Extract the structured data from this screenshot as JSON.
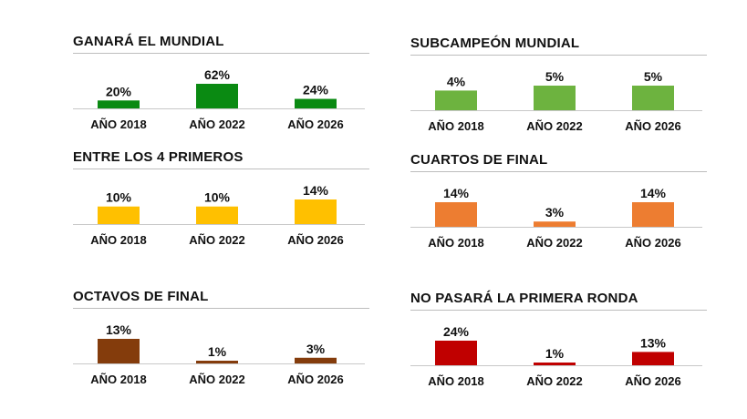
{
  "chart_data": [
    {
      "type": "bar",
      "title": "GANARÁ EL MUNDIAL",
      "categories": [
        "AÑO 2018",
        "AÑO 2022",
        "AÑO 2026"
      ],
      "values": [
        20,
        62,
        24
      ],
      "value_labels": [
        "20%",
        "62%",
        "24%"
      ],
      "color": "#0a8a12",
      "scale_max": 62
    },
    {
      "type": "bar",
      "title": "SUBCAMPEÓN MUNDIAL",
      "categories": [
        "AÑO 2018",
        "AÑO 2022",
        "AÑO 2026"
      ],
      "values": [
        4,
        5,
        5
      ],
      "value_labels": [
        "4%",
        "5%",
        "5%"
      ],
      "color": "#6db33f",
      "scale_max": 5
    },
    {
      "type": "bar",
      "title": "ENTRE LOS 4 PRIMEROS",
      "categories": [
        "AÑO 2018",
        "AÑO 2022",
        "AÑO 2026"
      ],
      "values": [
        10,
        10,
        14
      ],
      "value_labels": [
        "10%",
        "10%",
        "14%"
      ],
      "color": "#ffc000",
      "scale_max": 14
    },
    {
      "type": "bar",
      "title": "CUARTOS DE FINAL",
      "categories": [
        "AÑO 2018",
        "AÑO 2022",
        "AÑO 2026"
      ],
      "values": [
        14,
        3,
        14
      ],
      "value_labels": [
        "14%",
        "3%",
        "14%"
      ],
      "color": "#ed7d31",
      "scale_max": 14
    },
    {
      "type": "bar",
      "title": "OCTAVOS DE FINAL",
      "categories": [
        "AÑO 2018",
        "AÑO 2022",
        "AÑO 2026"
      ],
      "values": [
        13,
        1,
        3
      ],
      "value_labels": [
        "13%",
        "1%",
        "3%"
      ],
      "color": "#843c0c",
      "scale_max": 13
    },
    {
      "type": "bar",
      "title": "NO PASARÁ LA PRIMERA RONDA",
      "categories": [
        "AÑO 2018",
        "AÑO 2022",
        "AÑO 2026"
      ],
      "values": [
        24,
        1,
        13
      ],
      "value_labels": [
        "24%",
        "1%",
        "13%"
      ],
      "color": "#c00000",
      "scale_max": 24
    }
  ]
}
